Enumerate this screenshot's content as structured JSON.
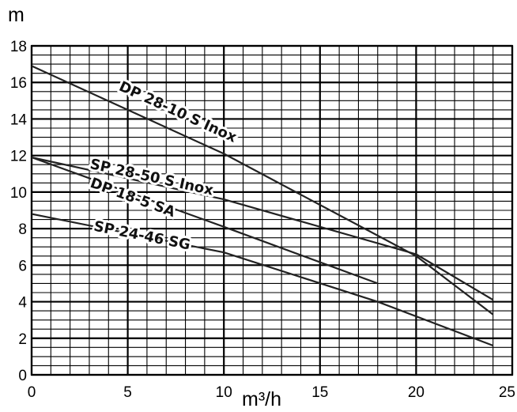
{
  "chart_data": {
    "type": "line",
    "title": "",
    "xlabel": "m³/h",
    "ylabel": "m",
    "xlim": [
      0,
      25
    ],
    "ylim": [
      0,
      18
    ],
    "xticks": [
      0,
      5,
      10,
      15,
      20,
      25
    ],
    "yticks": [
      0,
      2,
      4,
      6,
      8,
      10,
      12,
      14,
      16,
      18
    ],
    "grid": true,
    "series": [
      {
        "name": "DP 28-10 S Inox",
        "x": [
          0,
          10,
          20,
          24
        ],
        "y": [
          16.9,
          12.1,
          6.5,
          3.3
        ]
      },
      {
        "name": "SP 28-50 S Inox",
        "x": [
          0,
          10,
          20,
          24
        ],
        "y": [
          11.9,
          9.6,
          6.6,
          4.1
        ]
      },
      {
        "name": "DP 18-5 SA",
        "x": [
          0,
          10,
          18
        ],
        "y": [
          11.9,
          8.1,
          5.0
        ]
      },
      {
        "name": "SP 24-46 SG",
        "x": [
          0,
          10,
          18,
          24
        ],
        "y": [
          8.8,
          6.7,
          4.0,
          1.6
        ]
      }
    ]
  }
}
